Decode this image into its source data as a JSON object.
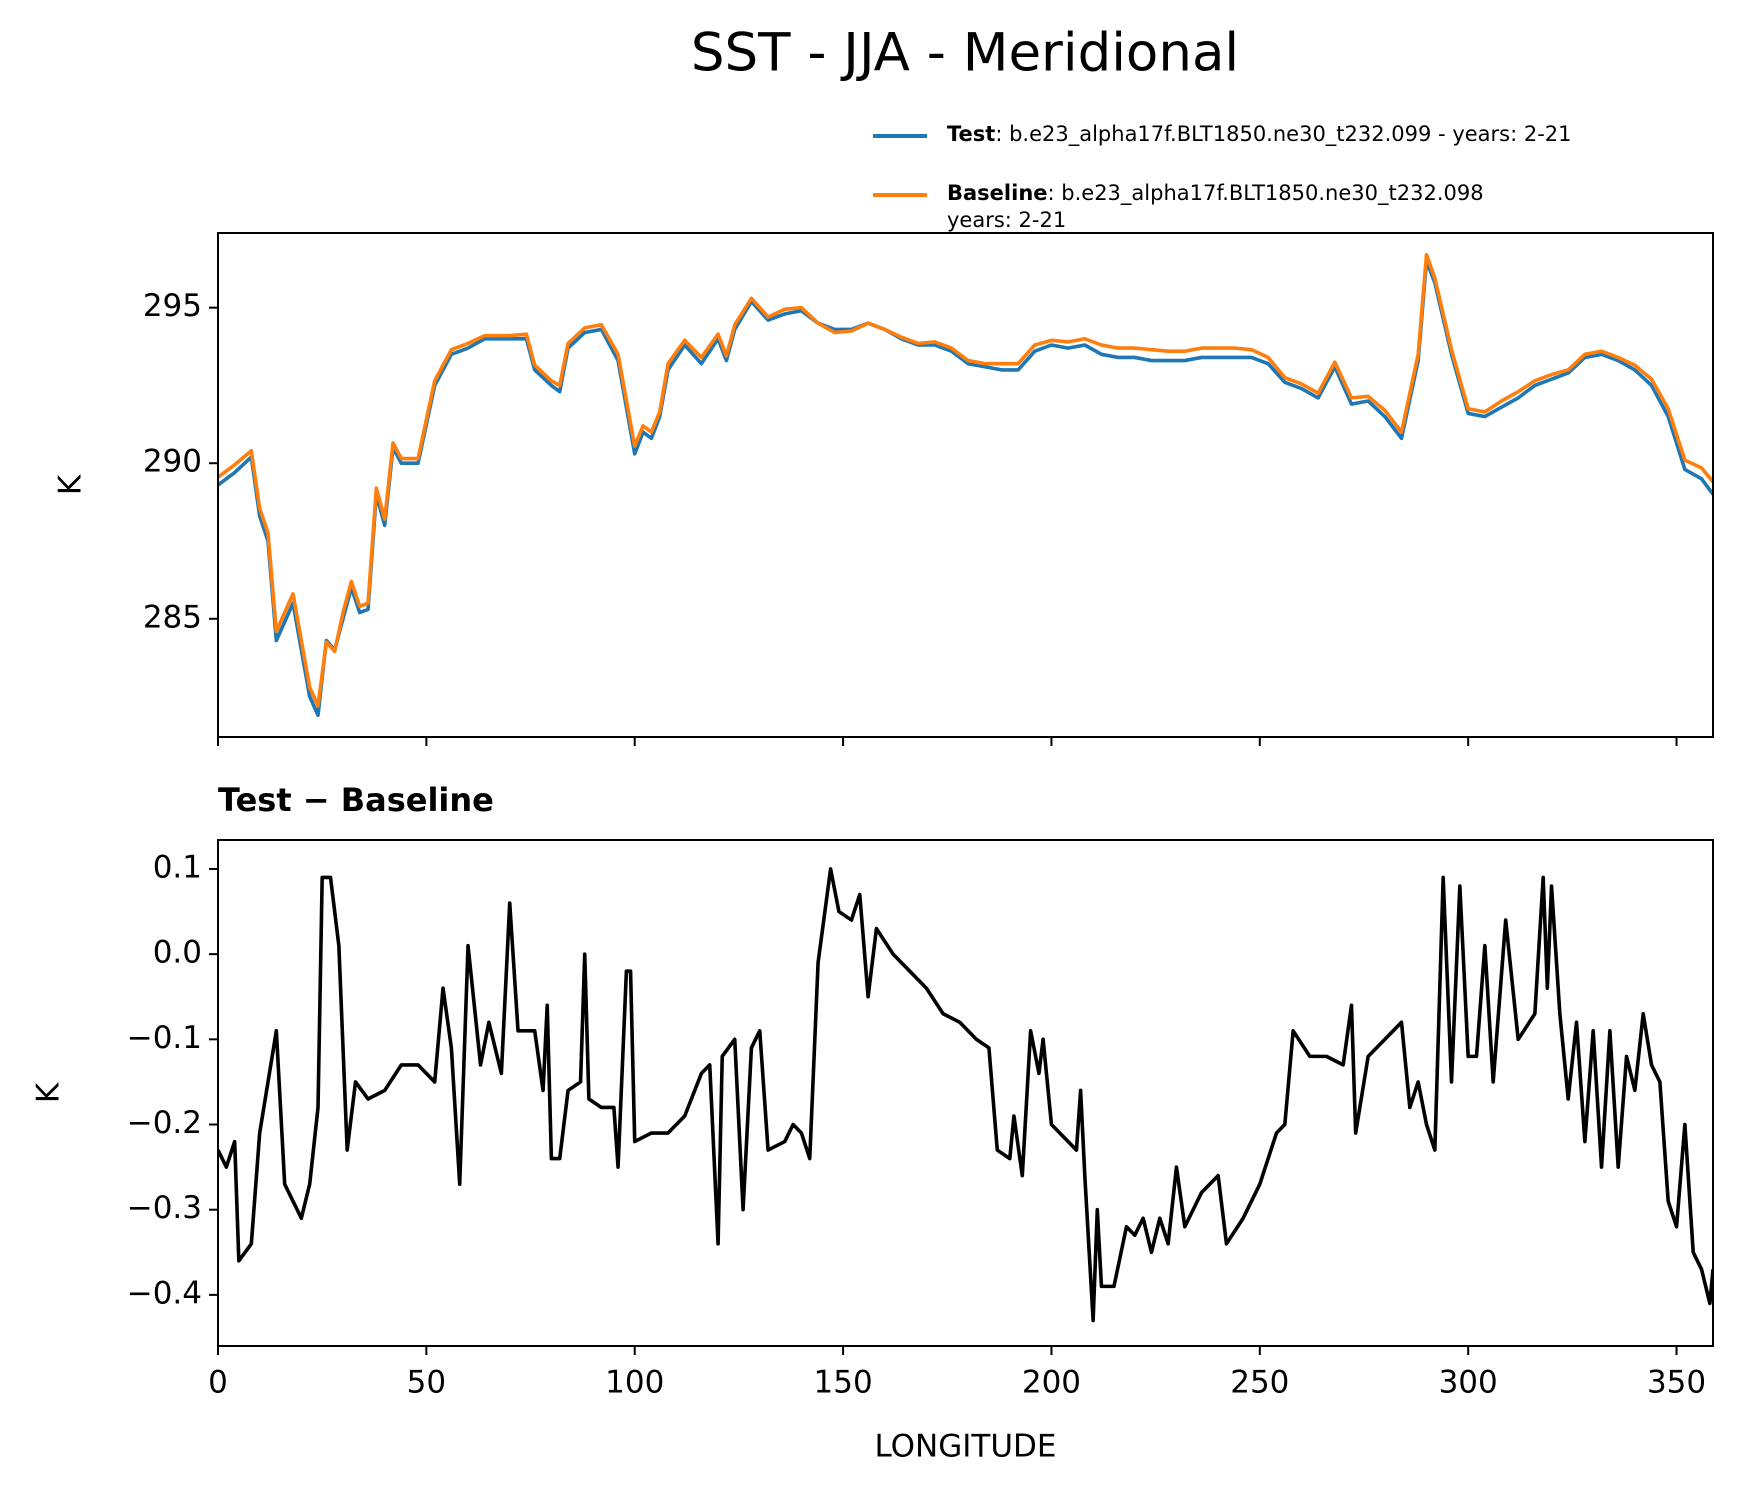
{
  "chart_data": [
    {
      "type": "line",
      "title": "SST - JJA - Meridional",
      "ylabel": "K",
      "x": [
        0,
        4,
        8,
        10,
        12,
        14,
        18,
        22,
        24,
        26,
        28,
        30,
        32,
        34,
        36,
        38,
        40,
        42,
        44,
        48,
        52,
        56,
        60,
        64,
        70,
        74,
        76,
        80,
        82,
        84,
        88,
        92,
        96,
        100,
        102,
        104,
        106,
        108,
        112,
        116,
        120,
        122,
        124,
        128,
        132,
        136,
        140,
        144,
        148,
        152,
        156,
        160,
        164,
        168,
        172,
        176,
        180,
        184,
        188,
        192,
        196,
        200,
        204,
        208,
        212,
        216,
        220,
        224,
        228,
        232,
        236,
        240,
        244,
        248,
        252,
        256,
        260,
        264,
        268,
        272,
        276,
        280,
        284,
        288,
        290,
        292,
        296,
        300,
        304,
        308,
        312,
        316,
        320,
        324,
        328,
        332,
        336,
        340,
        344,
        348,
        352,
        356,
        358.75
      ],
      "series": [
        {
          "name": "Test",
          "label": [
            ": b.e23_alpha17f.BLT1850.ne30_t232.099 - years: 2-21"
          ],
          "color": "#1f77b4",
          "values": [
            289.3,
            289.7,
            290.2,
            288.3,
            287.5,
            284.3,
            285.5,
            282.5,
            281.9,
            284.3,
            284.0,
            285.0,
            286.0,
            285.2,
            285.3,
            289.0,
            288.0,
            290.5,
            290.0,
            290.0,
            292.5,
            293.5,
            293.7,
            294.0,
            294.0,
            294.0,
            293.0,
            292.5,
            292.3,
            293.7,
            294.2,
            294.3,
            293.3,
            290.3,
            291.0,
            290.8,
            291.5,
            293.0,
            293.8,
            293.2,
            294.0,
            293.3,
            294.3,
            295.2,
            294.6,
            294.8,
            294.9,
            294.5,
            294.3,
            294.3,
            294.5,
            294.3,
            294.0,
            293.8,
            293.8,
            293.6,
            293.2,
            293.1,
            293.0,
            293.0,
            293.6,
            293.8,
            293.7,
            293.8,
            293.5,
            293.4,
            293.4,
            293.3,
            293.3,
            293.3,
            293.4,
            293.4,
            293.4,
            293.4,
            293.2,
            292.6,
            292.4,
            292.1,
            293.1,
            291.9,
            292.0,
            291.5,
            290.8,
            293.3,
            296.5,
            295.8,
            293.5,
            291.6,
            291.5,
            291.8,
            292.1,
            292.5,
            292.7,
            292.9,
            293.4,
            293.5,
            293.3,
            293.0,
            292.5,
            291.5,
            289.8,
            289.5,
            289.0
          ]
        },
        {
          "name": "Baseline",
          "label": [
            ": b.e23_alpha17f.BLT1850.ne30_t232.098",
            "years: 2-21"
          ],
          "color": "#ff7f0e",
          "values": [
            289.55,
            289.95,
            290.4,
            288.55,
            287.75,
            284.6,
            285.8,
            282.8,
            282.2,
            284.25,
            283.95,
            285.2,
            286.2,
            285.4,
            285.5,
            289.2,
            288.2,
            290.65,
            290.15,
            290.15,
            292.65,
            293.65,
            293.85,
            294.1,
            294.1,
            294.15,
            293.15,
            292.65,
            292.5,
            293.85,
            294.35,
            294.45,
            293.5,
            290.55,
            291.2,
            291.0,
            291.65,
            293.2,
            293.95,
            293.4,
            294.15,
            293.45,
            294.45,
            295.3,
            294.7,
            294.95,
            295.0,
            294.5,
            294.2,
            294.25,
            294.5,
            294.3,
            294.05,
            293.85,
            293.9,
            293.7,
            293.3,
            293.2,
            293.2,
            293.2,
            293.8,
            293.95,
            293.9,
            294.0,
            293.8,
            293.7,
            293.7,
            293.65,
            293.6,
            293.6,
            293.7,
            293.7,
            293.7,
            293.65,
            293.4,
            292.75,
            292.55,
            292.25,
            293.25,
            292.1,
            292.15,
            291.7,
            291.0,
            293.5,
            296.7,
            295.95,
            293.65,
            291.75,
            291.65,
            292.0,
            292.3,
            292.65,
            292.85,
            293.0,
            293.5,
            293.6,
            293.4,
            293.15,
            292.7,
            291.75,
            290.1,
            289.85,
            289.4
          ]
        }
      ],
      "xlim": [
        0,
        358.75
      ],
      "xticks": [
        0,
        50,
        100,
        150,
        200,
        250,
        300,
        350
      ],
      "ylim": [
        281.2,
        297.4
      ],
      "yticks": [
        285,
        290,
        295
      ]
    },
    {
      "type": "line",
      "title": "Test − Baseline",
      "xlabel": "LONGITUDE",
      "ylabel": "K",
      "x": [
        0,
        2,
        4,
        5,
        8,
        10,
        14,
        16,
        20,
        22,
        24,
        25,
        27,
        29,
        31,
        33,
        36,
        40,
        44,
        48,
        52,
        54,
        56,
        58,
        60,
        63,
        65,
        68,
        70,
        72,
        76,
        78,
        79,
        80,
        82,
        84,
        87,
        88,
        89,
        92,
        95,
        96,
        98,
        99,
        100,
        104,
        108,
        112,
        116,
        118,
        120,
        121,
        124,
        126,
        128,
        130,
        132,
        136,
        138,
        140,
        142,
        144,
        147,
        149,
        152,
        154,
        156,
        158,
        162,
        166,
        170,
        174,
        178,
        182,
        185,
        187,
        190,
        191,
        193,
        195,
        197,
        198,
        200,
        204,
        206,
        207,
        208,
        210,
        211,
        212,
        215,
        218,
        220,
        222,
        224,
        226,
        228,
        230,
        232,
        236,
        240,
        242,
        246,
        250,
        254,
        256,
        258,
        262,
        266,
        270,
        272,
        273,
        276,
        280,
        284,
        286,
        288,
        290,
        292,
        294,
        296,
        298,
        300,
        302,
        304,
        306,
        309,
        312,
        316,
        318,
        319,
        320,
        322,
        324,
        326,
        328,
        330,
        332,
        334,
        336,
        338,
        340,
        342,
        344,
        346,
        348,
        350,
        352,
        354,
        356,
        358,
        358.75
      ],
      "series": [
        {
          "color": "#000000",
          "values": [
            -0.23,
            -0.25,
            -0.22,
            -0.36,
            -0.34,
            -0.21,
            -0.09,
            -0.27,
            -0.31,
            -0.27,
            -0.18,
            0.09,
            0.09,
            0.01,
            -0.23,
            -0.15,
            -0.17,
            -0.16,
            -0.13,
            -0.13,
            -0.15,
            -0.04,
            -0.11,
            -0.27,
            0.01,
            -0.13,
            -0.08,
            -0.14,
            0.06,
            -0.09,
            -0.09,
            -0.16,
            -0.06,
            -0.24,
            -0.24,
            -0.16,
            -0.15,
            0.0,
            -0.17,
            -0.18,
            -0.18,
            -0.25,
            -0.02,
            -0.02,
            -0.22,
            -0.21,
            -0.21,
            -0.19,
            -0.14,
            -0.13,
            -0.34,
            -0.12,
            -0.1,
            -0.3,
            -0.11,
            -0.09,
            -0.23,
            -0.22,
            -0.2,
            -0.21,
            -0.24,
            -0.01,
            0.1,
            0.05,
            0.04,
            0.07,
            -0.05,
            0.03,
            0.0,
            -0.02,
            -0.04,
            -0.07,
            -0.08,
            -0.1,
            -0.11,
            -0.23,
            -0.24,
            -0.19,
            -0.26,
            -0.09,
            -0.14,
            -0.1,
            -0.2,
            -0.22,
            -0.23,
            -0.16,
            -0.26,
            -0.43,
            -0.3,
            -0.39,
            -0.39,
            -0.32,
            -0.33,
            -0.31,
            -0.35,
            -0.31,
            -0.34,
            -0.25,
            -0.32,
            -0.28,
            -0.26,
            -0.34,
            -0.31,
            -0.27,
            -0.21,
            -0.2,
            -0.09,
            -0.12,
            -0.12,
            -0.13,
            -0.06,
            -0.21,
            -0.12,
            -0.1,
            -0.08,
            -0.18,
            -0.15,
            -0.2,
            -0.23,
            0.09,
            -0.15,
            0.08,
            -0.12,
            -0.12,
            0.01,
            -0.15,
            0.04,
            -0.1,
            -0.07,
            0.09,
            -0.04,
            0.08,
            -0.07,
            -0.17,
            -0.08,
            -0.22,
            -0.09,
            -0.25,
            -0.09,
            -0.25,
            -0.12,
            -0.16,
            -0.07,
            -0.13,
            -0.15,
            -0.29,
            -0.32,
            -0.2,
            -0.35,
            -0.37,
            -0.41,
            -0.37
          ]
        }
      ],
      "xlim": [
        0,
        358.75
      ],
      "xticks": [
        0,
        50,
        100,
        150,
        200,
        250,
        300,
        350
      ],
      "ylim": [
        -0.46,
        0.134
      ],
      "yticks": [
        {
          "value": -0.4,
          "label": "−0.4"
        },
        {
          "value": -0.3,
          "label": "−0.3"
        },
        {
          "value": -0.2,
          "label": "−0.2"
        },
        {
          "value": -0.1,
          "label": "−0.1"
        },
        {
          "value": 0,
          "label": "0.0"
        },
        0.1
      ]
    }
  ]
}
